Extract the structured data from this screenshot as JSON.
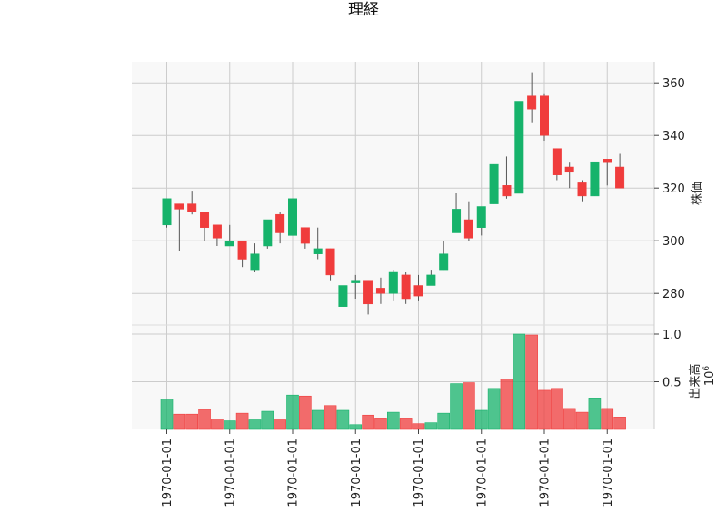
{
  "chart_data": {
    "type": "candlestick",
    "title": "理経",
    "price_axis_label": "株価",
    "volume_axis_label": "出来高",
    "volume_multiplier_label": "10",
    "volume_multiplier_exp": "6",
    "price_ylim": [
      268,
      368
    ],
    "volume_ylim": [
      0,
      1.0
    ],
    "price_ticks": [
      "280",
      "300",
      "320",
      "340",
      "360"
    ],
    "volume_ticks": [
      "0.5",
      "1.0"
    ],
    "x_tick_labels": [
      "1970-01-01",
      "1970-01-01",
      "1970-01-01",
      "1970-01-01",
      "1970-01-01",
      "1970-01-01",
      "1970-01-01",
      "1970-01-01"
    ],
    "x_tick_candle_index": [
      0,
      5,
      10,
      15,
      20,
      25,
      30,
      35
    ],
    "grid": true,
    "up_color": "#16b36b",
    "down_color": "#f03c3c",
    "candles": [
      {
        "o": 306,
        "h": 316,
        "l": 305,
        "c": 316,
        "v": 0.32
      },
      {
        "o": 314,
        "h": 314,
        "l": 296,
        "c": 312,
        "v": 0.16
      },
      {
        "o": 314,
        "h": 319,
        "l": 310,
        "c": 311,
        "v": 0.16
      },
      {
        "o": 311,
        "h": 311,
        "l": 300,
        "c": 305,
        "v": 0.21
      },
      {
        "o": 306,
        "h": 306,
        "l": 298,
        "c": 301,
        "v": 0.11
      },
      {
        "o": 298,
        "h": 306,
        "l": 298,
        "c": 300,
        "v": 0.09
      },
      {
        "o": 300,
        "h": 300,
        "l": 290,
        "c": 293,
        "v": 0.17
      },
      {
        "o": 289,
        "h": 299,
        "l": 288,
        "c": 295,
        "v": 0.1
      },
      {
        "o": 298,
        "h": 308,
        "l": 297,
        "c": 308,
        "v": 0.19
      },
      {
        "o": 310,
        "h": 311,
        "l": 299,
        "c": 303,
        "v": 0.1
      },
      {
        "o": 302,
        "h": 316,
        "l": 302,
        "c": 316,
        "v": 0.36
      },
      {
        "o": 305,
        "h": 305,
        "l": 297,
        "c": 299,
        "v": 0.35
      },
      {
        "o": 295,
        "h": 305,
        "l": 293,
        "c": 297,
        "v": 0.2
      },
      {
        "o": 297,
        "h": 297,
        "l": 285,
        "c": 287,
        "v": 0.25
      },
      {
        "o": 275,
        "h": 283,
        "l": 275,
        "c": 283,
        "v": 0.2
      },
      {
        "o": 284,
        "h": 287,
        "l": 278,
        "c": 285,
        "v": 0.05
      },
      {
        "o": 285,
        "h": 285,
        "l": 272,
        "c": 276,
        "v": 0.15
      },
      {
        "o": 282,
        "h": 286,
        "l": 276,
        "c": 280,
        "v": 0.12
      },
      {
        "o": 280,
        "h": 289,
        "l": 277,
        "c": 288,
        "v": 0.18
      },
      {
        "o": 287,
        "h": 288,
        "l": 276,
        "c": 278,
        "v": 0.12
      },
      {
        "o": 283,
        "h": 287,
        "l": 277,
        "c": 279,
        "v": 0.06
      },
      {
        "o": 283,
        "h": 289,
        "l": 283,
        "c": 287,
        "v": 0.07
      },
      {
        "o": 289,
        "h": 300,
        "l": 289,
        "c": 295,
        "v": 0.17
      },
      {
        "o": 303,
        "h": 318,
        "l": 303,
        "c": 312,
        "v": 0.48
      },
      {
        "o": 308,
        "h": 315,
        "l": 300,
        "c": 301,
        "v": 0.49
      },
      {
        "o": 305,
        "h": 313,
        "l": 302,
        "c": 313,
        "v": 0.2
      },
      {
        "o": 314,
        "h": 329,
        "l": 314,
        "c": 329,
        "v": 0.43
      },
      {
        "o": 321,
        "h": 332,
        "l": 316,
        "c": 317,
        "v": 0.53
      },
      {
        "o": 318,
        "h": 353,
        "l": 318,
        "c": 353,
        "v": 1.0
      },
      {
        "o": 355,
        "h": 364,
        "l": 345,
        "c": 350,
        "v": 0.99
      },
      {
        "o": 355,
        "h": 356,
        "l": 338,
        "c": 340,
        "v": 0.41
      },
      {
        "o": 335,
        "h": 335,
        "l": 323,
        "c": 325,
        "v": 0.43
      },
      {
        "o": 328,
        "h": 330,
        "l": 320,
        "c": 326,
        "v": 0.22
      },
      {
        "o": 322,
        "h": 323,
        "l": 315,
        "c": 317,
        "v": 0.18
      },
      {
        "o": 317,
        "h": 330,
        "l": 317,
        "c": 330,
        "v": 0.33
      },
      {
        "o": 331,
        "h": 331,
        "l": 321,
        "c": 330,
        "v": 0.22
      },
      {
        "o": 328,
        "h": 333,
        "l": 320,
        "c": 320,
        "v": 0.13
      }
    ]
  }
}
